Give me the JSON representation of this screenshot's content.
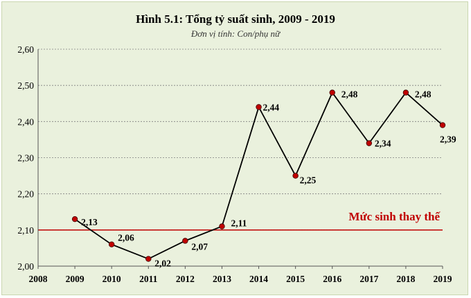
{
  "chart_data": {
    "type": "line",
    "title": "Hình 5.1: Tổng tỷ suất sinh, 2009 - 2019",
    "subtitle": "Đơn vị tính: Con/phụ nữ",
    "x_ticks": [
      "2008",
      "2009",
      "2010",
      "2011",
      "2012",
      "2013",
      "2014",
      "2015",
      "2016",
      "2017",
      "2018",
      "2019"
    ],
    "y_ticks": [
      "2,00",
      "2,10",
      "2,20",
      "2,30",
      "2,40",
      "2,50",
      "2,60"
    ],
    "ylim": [
      2.0,
      2.6
    ],
    "xlim": [
      2008,
      2019
    ],
    "grid": true,
    "series": [
      {
        "x": [
          2009,
          2010,
          2011,
          2012,
          2013,
          2014,
          2015,
          2016,
          2017,
          2018,
          2019
        ],
        "values": [
          2.13,
          2.06,
          2.02,
          2.07,
          2.11,
          2.44,
          2.25,
          2.48,
          2.34,
          2.48,
          2.39
        ],
        "labels": [
          "2,13",
          "2,06",
          "2,02",
          "2,07",
          "2,11",
          "2,44",
          "2,25",
          "2,48",
          "2,34",
          "2,48",
          "2,39"
        ]
      }
    ],
    "reference_line": {
      "value": 2.1,
      "label": "Mức sinh thay thế",
      "color": "#c00000"
    },
    "colors": {
      "line": "#000000",
      "marker": "#c00000",
      "background": "#eaf1dd",
      "grid": "#7f7f7f"
    }
  }
}
